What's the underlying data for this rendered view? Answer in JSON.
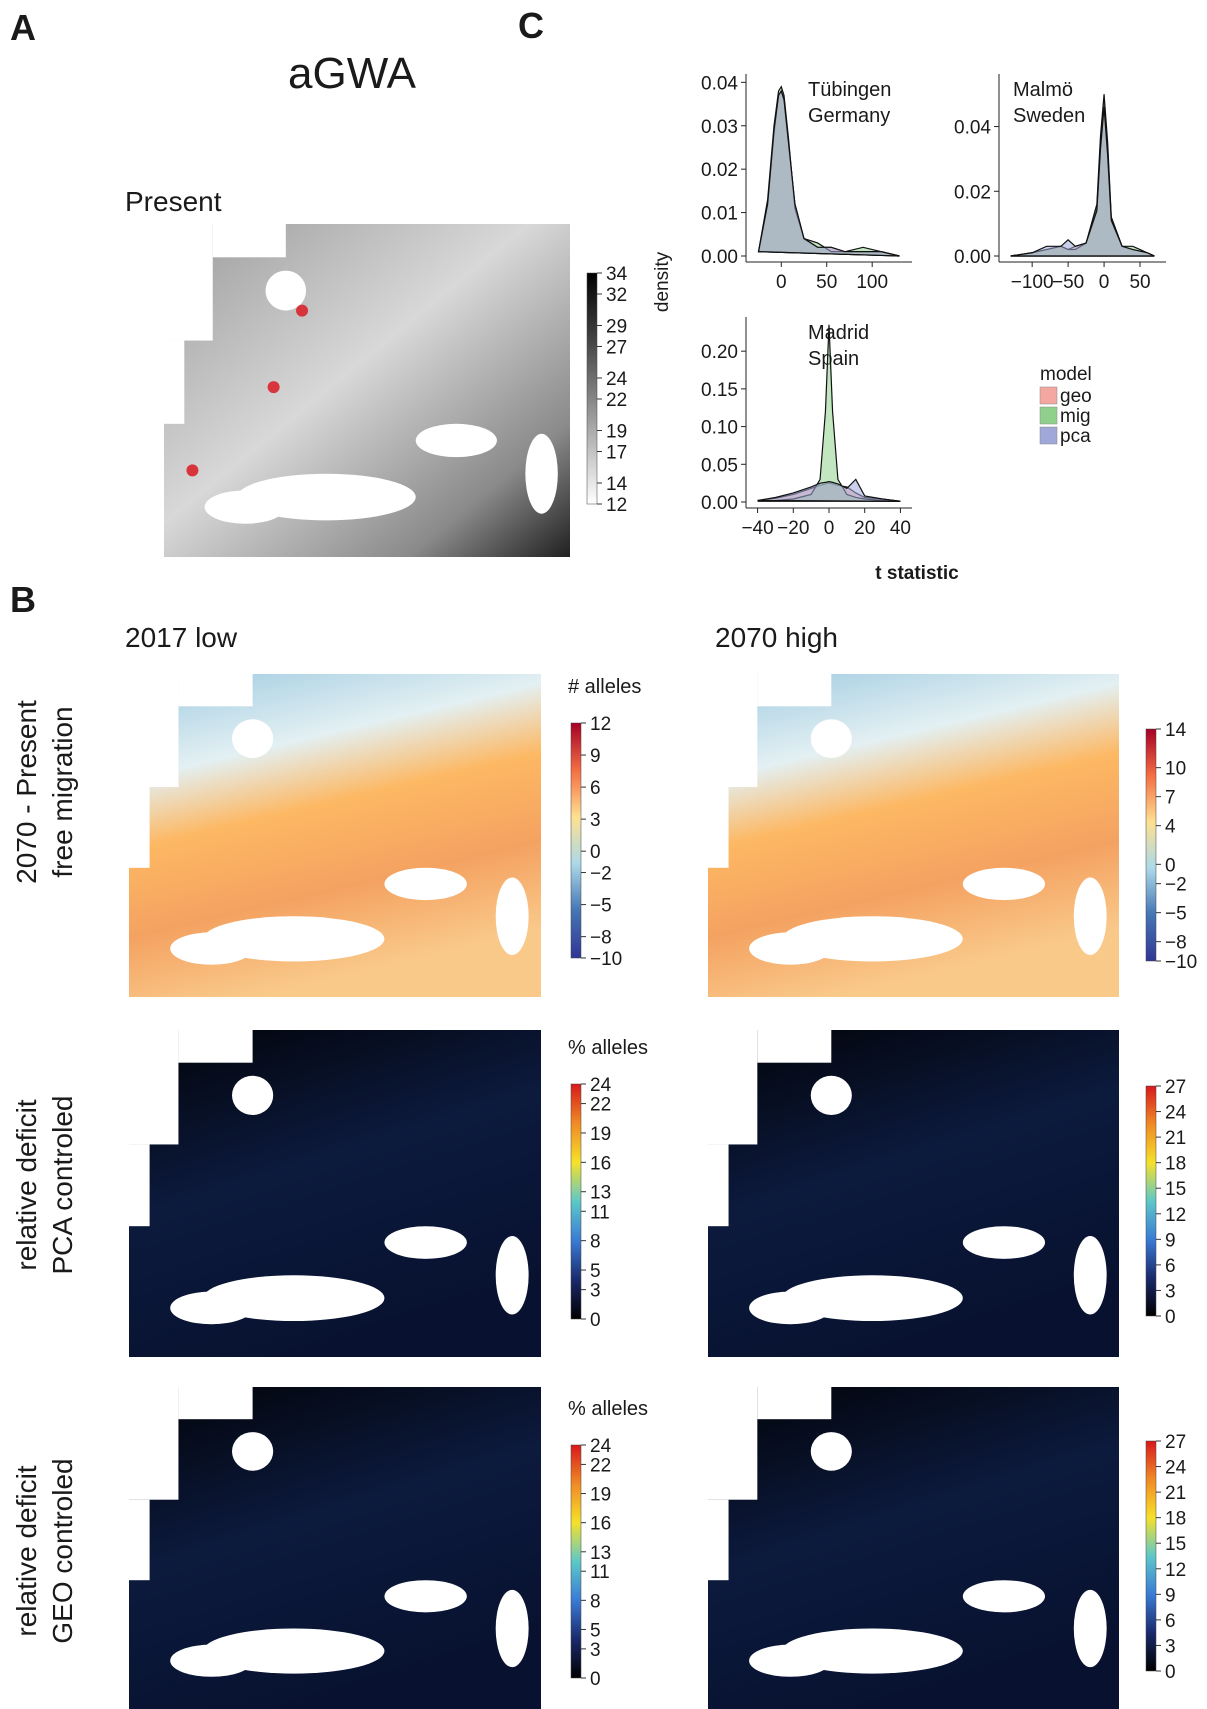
{
  "figure": {
    "panel_labels": [
      "A",
      "B",
      "C"
    ],
    "a_title": "aGWA",
    "a_subtitle": "Present",
    "b_columns": [
      "2017 low",
      "2070 high"
    ],
    "b_rows": [
      [
        "2070 - Present",
        "free migration"
      ],
      [
        "relative deficit",
        "PCA controled"
      ],
      [
        "relative deficit",
        "GEO controled"
      ]
    ],
    "density_ylabel": "density",
    "density_xlabel": "t statistic",
    "legend_title": "model"
  },
  "colorbars": [
    {
      "lim": [
        12,
        34
      ],
      "ticks": [
        12,
        14,
        17,
        19,
        22,
        24,
        27,
        29,
        32,
        34
      ],
      "colors": [
        "#ffffff",
        "#bdbdbd",
        "#7a7a7a",
        "#3a3a3a",
        "#000000"
      ]
    },
    {
      "title": "# alleles",
      "lim": [
        -10,
        12
      ],
      "ticks": [
        {
          "value": -10,
          "label": "−10"
        },
        {
          "value": -8,
          "label": "−8"
        },
        {
          "value": -5,
          "label": "−5"
        },
        {
          "value": -2,
          "label": "−2"
        },
        0,
        3,
        6,
        9,
        12
      ],
      "colors": [
        "#313695",
        "#4575b4",
        "#abd9e9",
        "#fee090",
        "#f46d43",
        "#a50026"
      ]
    },
    {
      "lim": [
        -10,
        14
      ],
      "ticks": [
        14,
        10,
        7,
        4,
        0,
        {
          "value": -2,
          "label": "−2"
        },
        {
          "value": -5,
          "label": "−5"
        },
        {
          "value": -8,
          "label": "−8"
        },
        {
          "value": -10,
          "label": "−10"
        }
      ],
      "colors": [
        "#313695",
        "#4575b4",
        "#abd9e9",
        "#fee090",
        "#f46d43",
        "#a50026"
      ]
    },
    {
      "title": "% alleles",
      "lim": [
        0,
        24
      ],
      "ticks": [
        0,
        3,
        5,
        8,
        11,
        13,
        16,
        19,
        22,
        24
      ],
      "colors": [
        "#000000",
        "#1a2a6c",
        "#3a7bd5",
        "#5ec8c8",
        "#f5e12a",
        "#f08a24",
        "#d7191c"
      ]
    },
    {
      "lim": [
        0,
        27
      ],
      "ticks": [
        0,
        3,
        6,
        9,
        12,
        15,
        18,
        21,
        24,
        27
      ],
      "colors": [
        "#000000",
        "#1a2a6c",
        "#3a7bd5",
        "#5ec8c8",
        "#f5e12a",
        "#f08a24",
        "#d7191c"
      ]
    },
    {
      "title": "% alleles",
      "lim": [
        0,
        24
      ],
      "ticks": [
        0,
        3,
        5,
        8,
        11,
        13,
        16,
        19,
        22,
        24
      ],
      "colors": [
        "#000000",
        "#1a2a6c",
        "#3a7bd5",
        "#5ec8c8",
        "#f5e12a",
        "#f08a24",
        "#d7191c"
      ]
    },
    {
      "lim": [
        0,
        27
      ],
      "ticks": [
        0,
        3,
        6,
        9,
        12,
        15,
        18,
        21,
        24,
        27
      ],
      "colors": [
        "#000000",
        "#1a2a6c",
        "#3a7bd5",
        "#5ec8c8",
        "#f5e12a",
        "#f08a24",
        "#d7191c"
      ]
    }
  ],
  "chart_data": [
    {
      "type": "density",
      "title": [
        "Tübingen",
        "Germany"
      ],
      "x": [
        -25,
        -15,
        -8,
        -3,
        0,
        3,
        8,
        15,
        25,
        40,
        55,
        70,
        90,
        110,
        130
      ],
      "xlim": [
        -30,
        135
      ],
      "xticks": [
        0,
        50,
        100
      ],
      "ylim": [
        0,
        0.041
      ],
      "yticks": [
        {
          "value": 0,
          "label": "0.00"
        },
        {
          "value": 0.01,
          "label": "0.01"
        },
        {
          "value": 0.02,
          "label": "0.02"
        },
        {
          "value": 0.03,
          "label": "0.03"
        },
        {
          "value": 0.04,
          "label": "0.04"
        }
      ],
      "series": [
        {
          "name": "geo",
          "color": "#f4a6a0",
          "values": [
            0.001,
            0.012,
            0.028,
            0.037,
            0.038,
            0.036,
            0.026,
            0.012,
            0.004,
            0.002,
            0.002,
            0.001,
            0.001,
            0.001,
            0
          ]
        },
        {
          "name": "mig",
          "color": "#8fd18c",
          "values": [
            0.001,
            0.013,
            0.03,
            0.038,
            0.039,
            0.037,
            0.027,
            0.011,
            0.004,
            0.003,
            0.001,
            0.001,
            0.002,
            0.001,
            0
          ]
        },
        {
          "name": "pca",
          "color": "#9fa8d8",
          "values": [
            0.001,
            0.012,
            0.029,
            0.037,
            0.038,
            0.036,
            0.026,
            0.012,
            0.004,
            0.002,
            0.002,
            0.001,
            0.001,
            0.001,
            0
          ]
        }
      ]
    },
    {
      "type": "density",
      "title": [
        "Malmö",
        "Sweden"
      ],
      "x": [
        -130,
        -100,
        -80,
        -60,
        -50,
        -40,
        -25,
        -10,
        -5,
        0,
        5,
        10,
        25,
        40,
        60,
        70
      ],
      "xlim": [
        -135,
        75
      ],
      "xticks": [
        {
          "value": -100,
          "label": "−100"
        },
        {
          "value": -50,
          "label": "−50"
        },
        0,
        50
      ],
      "ylim": [
        0,
        0.055
      ],
      "yticks": [
        {
          "value": 0,
          "label": "0.00"
        },
        {
          "value": 0.02,
          "label": "0.02"
        },
        {
          "value": 0.04,
          "label": "0.04"
        }
      ],
      "series": [
        {
          "name": "geo",
          "color": "#f4a6a0",
          "values": [
            0,
            0.001,
            0.002,
            0.003,
            0.002,
            0.003,
            0.004,
            0.015,
            0.035,
            0.048,
            0.033,
            0.012,
            0.003,
            0.002,
            0.001,
            0
          ]
        },
        {
          "name": "mig",
          "color": "#8fd18c",
          "values": [
            0,
            0.001,
            0.002,
            0.003,
            0.002,
            0.002,
            0.004,
            0.016,
            0.037,
            0.05,
            0.035,
            0.012,
            0.003,
            0.003,
            0.001,
            0
          ]
        },
        {
          "name": "pca",
          "color": "#9fa8d8",
          "values": [
            0,
            0.001,
            0.003,
            0.003,
            0.005,
            0.003,
            0.004,
            0.014,
            0.033,
            0.046,
            0.031,
            0.011,
            0.003,
            0.002,
            0.001,
            0
          ]
        }
      ]
    },
    {
      "type": "density",
      "title": [
        "Madrid",
        "Spain"
      ],
      "x": [
        -40,
        -30,
        -20,
        -10,
        -5,
        -2,
        0,
        2,
        5,
        10,
        15,
        20,
        30,
        40
      ],
      "xlim": [
        -42,
        42
      ],
      "xticks": [
        {
          "value": -40,
          "label": "−40"
        },
        {
          "value": -20,
          "label": "−20"
        },
        0,
        20,
        40
      ],
      "ylim": [
        0,
        0.24
      ],
      "yticks": [
        {
          "value": 0,
          "label": "0.00"
        },
        {
          "value": 0.05,
          "label": "0.05"
        },
        {
          "value": 0.1,
          "label": "0.10"
        },
        {
          "value": 0.15,
          "label": "0.15"
        },
        {
          "value": 0.2,
          "label": "0.20"
        }
      ],
      "series": [
        {
          "name": "geo",
          "color": "#f4a6a0",
          "values": [
            0.002,
            0.005,
            0.01,
            0.018,
            0.022,
            0.024,
            0.025,
            0.024,
            0.022,
            0.02,
            0.012,
            0.006,
            0.004,
            0.001
          ]
        },
        {
          "name": "mig",
          "color": "#8fd18c",
          "values": [
            0.001,
            0.002,
            0.004,
            0.01,
            0.03,
            0.12,
            0.235,
            0.12,
            0.03,
            0.01,
            0.006,
            0.004,
            0.002,
            0.001
          ]
        },
        {
          "name": "pca",
          "color": "#9fa8d8",
          "values": [
            0.002,
            0.006,
            0.012,
            0.02,
            0.025,
            0.026,
            0.027,
            0.026,
            0.024,
            0.018,
            0.03,
            0.008,
            0.004,
            0.001
          ]
        }
      ]
    }
  ]
}
